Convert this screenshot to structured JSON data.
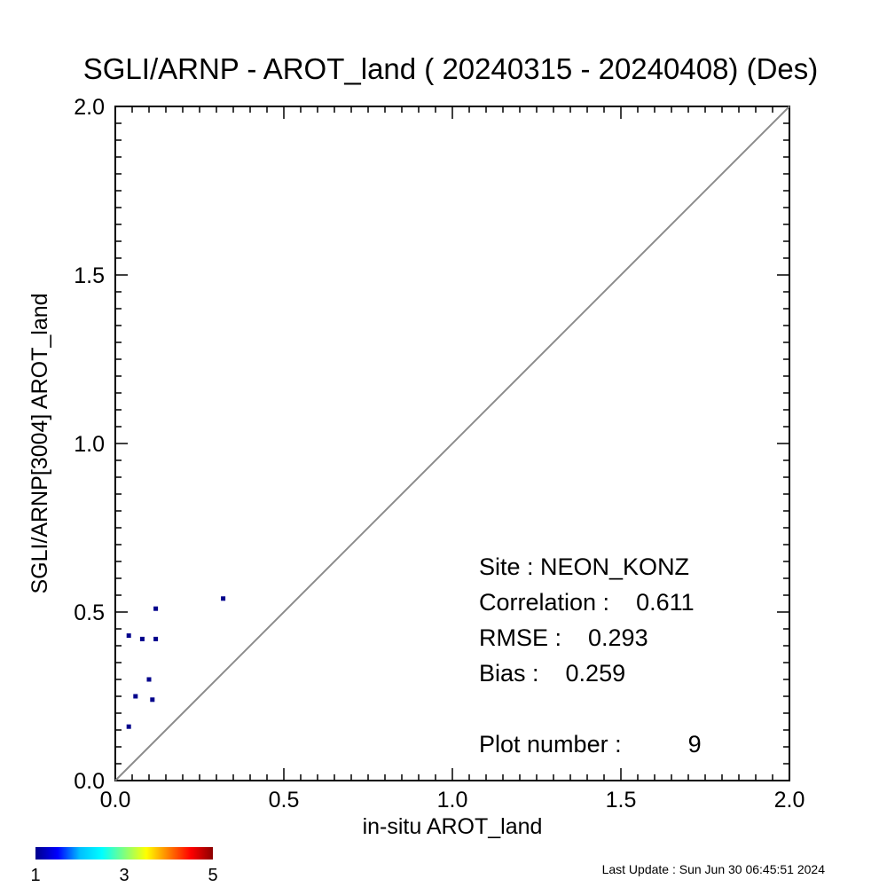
{
  "chart_data": {
    "type": "scatter",
    "title": "SGLI/ARNP - AROT_land ( 20240315 - 20240408) (Des)",
    "xlabel": "in-situ AROT_land",
    "ylabel": "SGLI/ARNP[3004]    AROT_land",
    "xlim": [
      0.0,
      2.0
    ],
    "ylim": [
      0.0,
      2.0
    ],
    "x_ticks": [
      "0.0",
      "0.5",
      "1.0",
      "1.5",
      "2.0"
    ],
    "y_ticks": [
      "0.0",
      "0.5",
      "1.0",
      "1.5",
      "2.0"
    ],
    "one_to_one_line": true,
    "grid": false,
    "points": [
      {
        "x": 0.04,
        "y": 0.43
      },
      {
        "x": 0.08,
        "y": 0.42
      },
      {
        "x": 0.12,
        "y": 0.42
      },
      {
        "x": 0.12,
        "y": 0.51
      },
      {
        "x": 0.32,
        "y": 0.54
      },
      {
        "x": 0.1,
        "y": 0.3
      },
      {
        "x": 0.06,
        "y": 0.25
      },
      {
        "x": 0.11,
        "y": 0.24
      },
      {
        "x": 0.04,
        "y": 0.16
      }
    ],
    "point_color": "#00008b",
    "stats": [
      "Site : NEON_KONZ",
      "Correlation :    0.611",
      "RMSE :    0.293",
      "Bias :    0.259",
      "",
      "Plot number :          9"
    ],
    "colorbar": {
      "labels": [
        "1",
        "3",
        "5"
      ],
      "colors": [
        "#00008b",
        "#0000ff",
        "#00bfff",
        "#00ffff",
        "#7fff7f",
        "#ffff00",
        "#ff7f00",
        "#ff0000",
        "#8b0000"
      ]
    }
  },
  "footer": "Last Update : Sun Jun 30 06:45:51 2024"
}
